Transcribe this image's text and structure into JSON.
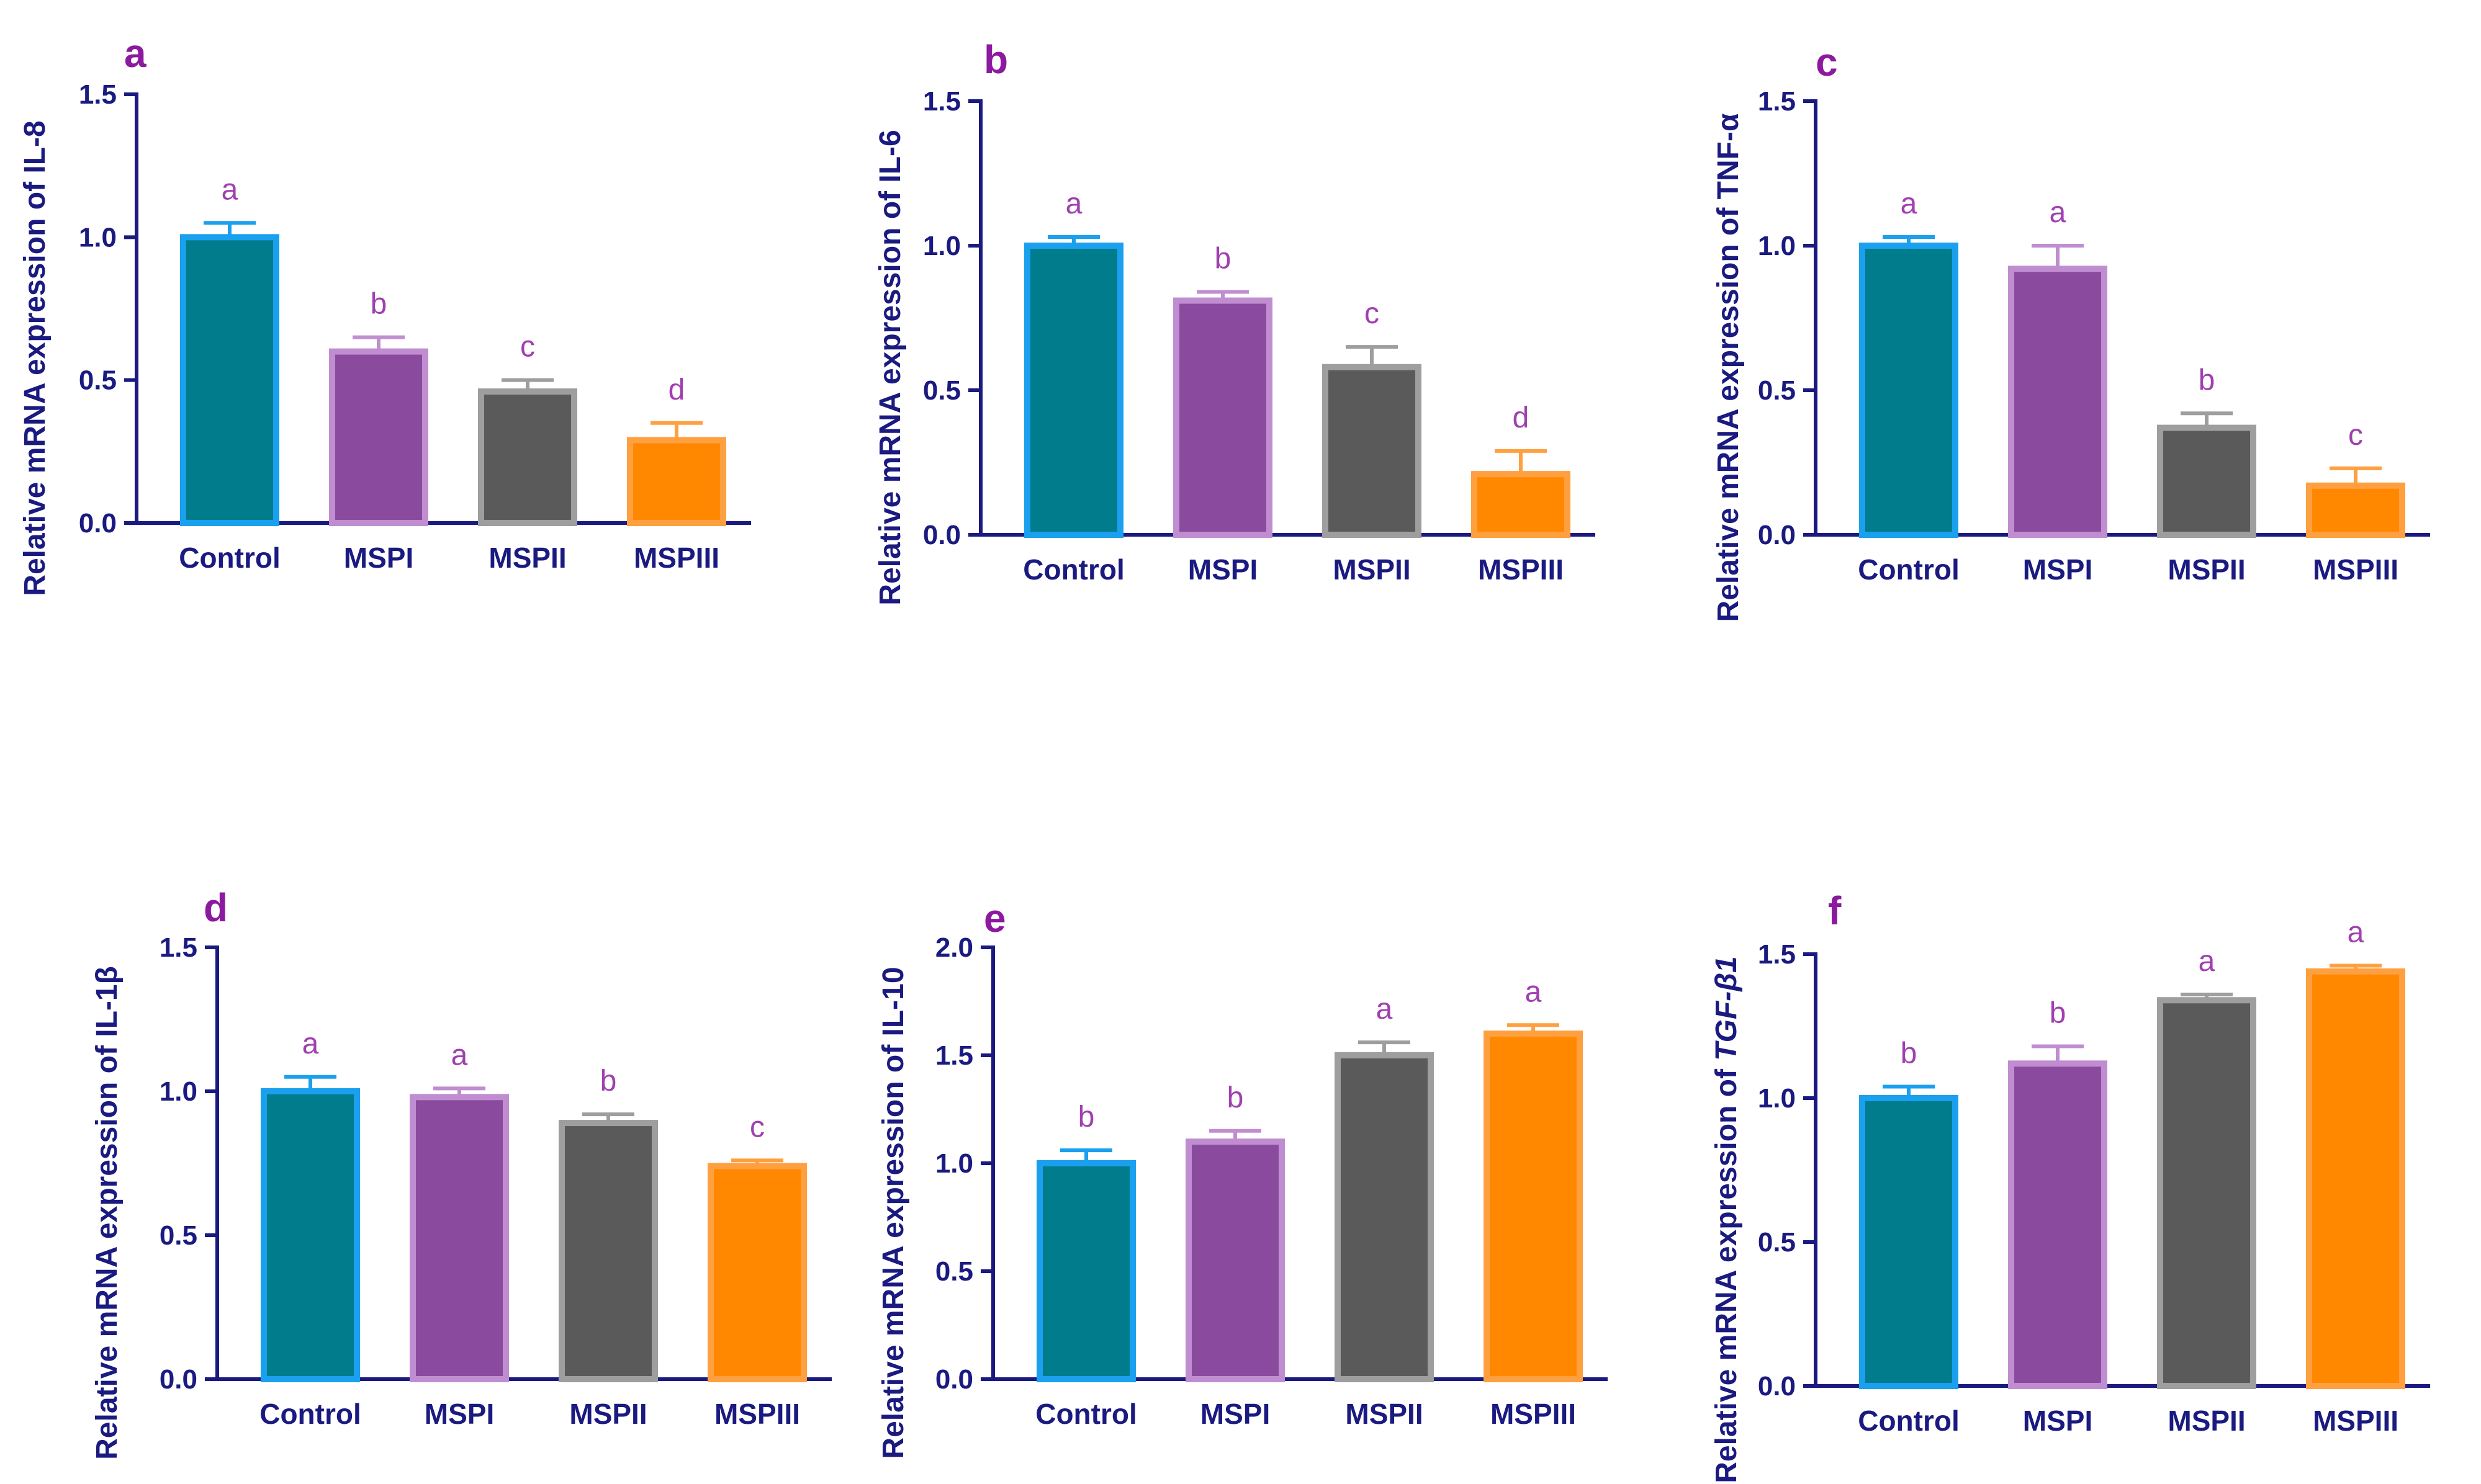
{
  "colors": {
    "axis": "#1a1a80",
    "panel_letter": "#8b1a9e",
    "sig_letter": "#a040b0",
    "bars": [
      {
        "fill": "#007c8c",
        "edge": "#1aa0ee"
      },
      {
        "fill": "#8a4a9e",
        "edge": "#c08ed0"
      },
      {
        "fill": "#5a5a5a",
        "edge": "#9e9e9e"
      },
      {
        "fill": "#ff8800",
        "edge": "#ffa040"
      }
    ]
  },
  "chart_data": [
    {
      "type": "bar",
      "panel": "a",
      "title": "",
      "xlabel": "",
      "ylabel": "Relative mRNA expression of IL-8",
      "ylabel_parts": [
        {
          "text": "Relative mRNA expression of IL-8",
          "italic": false
        }
      ],
      "categories": [
        "Control",
        "MSPI",
        "MSPII",
        "MSPIII"
      ],
      "values": [
        1.0,
        0.6,
        0.46,
        0.29
      ],
      "errors": [
        0.05,
        0.05,
        0.04,
        0.06
      ],
      "significance": [
        "a",
        "b",
        "c",
        "d"
      ],
      "ylim": [
        0,
        1.5
      ],
      "yticks": [
        "0.0",
        "0.5",
        "1.0",
        "1.5"
      ],
      "ytick_values": [
        0,
        0.5,
        1.0,
        1.5
      ]
    },
    {
      "type": "bar",
      "panel": "b",
      "title": "",
      "xlabel": "",
      "ylabel": "Relative mRNA expression of IL-6",
      "ylabel_parts": [
        {
          "text": "Relative mRNA expression of IL-6",
          "italic": false
        }
      ],
      "categories": [
        "Control",
        "MSPI",
        "MSPII",
        "MSPIII"
      ],
      "values": [
        1.0,
        0.81,
        0.58,
        0.21
      ],
      "errors": [
        0.03,
        0.03,
        0.07,
        0.08
      ],
      "significance": [
        "a",
        "b",
        "c",
        "d"
      ],
      "ylim": [
        0,
        1.5
      ],
      "yticks": [
        "0.0",
        "0.5",
        "1.0",
        "1.5"
      ],
      "ytick_values": [
        0,
        0.5,
        1.0,
        1.5
      ]
    },
    {
      "type": "bar",
      "panel": "c",
      "title": "",
      "xlabel": "",
      "ylabel": "Relative mRNA expression of TNF-α",
      "ylabel_parts": [
        {
          "text": "Relative mRNA expression of TNF-α",
          "italic": false
        }
      ],
      "categories": [
        "Control",
        "MSPI",
        "MSPII",
        "MSPIII"
      ],
      "values": [
        1.0,
        0.92,
        0.37,
        0.17
      ],
      "errors": [
        0.03,
        0.08,
        0.05,
        0.06
      ],
      "significance": [
        "a",
        "a",
        "b",
        "c"
      ],
      "ylim": [
        0,
        1.5
      ],
      "yticks": [
        "0.0",
        "0.5",
        "1.0",
        "1.5"
      ],
      "ytick_values": [
        0,
        0.5,
        1.0,
        1.5
      ]
    },
    {
      "type": "bar",
      "panel": "d",
      "title": "",
      "xlabel": "",
      "ylabel": "Relative mRNA expression of IL-1β",
      "ylabel_parts": [
        {
          "text": "Relative mRNA expression of IL-1β",
          "italic": false
        }
      ],
      "categories": [
        "Control",
        "MSPI",
        "MSPII",
        "MSPIII"
      ],
      "values": [
        1.0,
        0.98,
        0.89,
        0.74
      ],
      "errors": [
        0.05,
        0.03,
        0.03,
        0.02
      ],
      "significance": [
        "a",
        "a",
        "b",
        "c"
      ],
      "ylim": [
        0,
        1.5
      ],
      "yticks": [
        "0.0",
        "0.5",
        "1.0",
        "1.5"
      ],
      "ytick_values": [
        0,
        0.5,
        1.0,
        1.5
      ]
    },
    {
      "type": "bar",
      "panel": "e",
      "title": "",
      "xlabel": "",
      "ylabel": "Relative mRNA expression of IL-10",
      "ylabel_parts": [
        {
          "text": "Relative mRNA expression of IL-10",
          "italic": false
        }
      ],
      "categories": [
        "Control",
        "MSPI",
        "MSPII",
        "MSPIII"
      ],
      "values": [
        1.0,
        1.1,
        1.5,
        1.6
      ],
      "errors": [
        0.06,
        0.05,
        0.06,
        0.04
      ],
      "significance": [
        "b",
        "b",
        "a",
        "a"
      ],
      "ylim": [
        0,
        2.0
      ],
      "yticks": [
        "0.0",
        "0.5",
        "1.0",
        "1.5",
        "2.0"
      ],
      "ytick_values": [
        0,
        0.5,
        1.0,
        1.5,
        2.0
      ]
    },
    {
      "type": "bar",
      "panel": "f",
      "title": "",
      "xlabel": "",
      "ylabel": "Relative mRNA expression of TGF-β1",
      "ylabel_parts": [
        {
          "text": "Relative mRNA expression of ",
          "italic": false
        },
        {
          "text": "TGF-β1",
          "italic": true
        }
      ],
      "categories": [
        "Control",
        "MSPI",
        "MSPII",
        "MSPIII"
      ],
      "values": [
        1.0,
        1.12,
        1.34,
        1.44
      ],
      "errors": [
        0.04,
        0.06,
        0.02,
        0.02
      ],
      "significance": [
        "b",
        "b",
        "a",
        "a"
      ],
      "ylim": [
        0,
        1.5
      ],
      "yticks": [
        "0.0",
        "0.5",
        "1.0",
        "1.5"
      ],
      "ytick_values": [
        0,
        0.5,
        1.0,
        1.5
      ]
    }
  ]
}
